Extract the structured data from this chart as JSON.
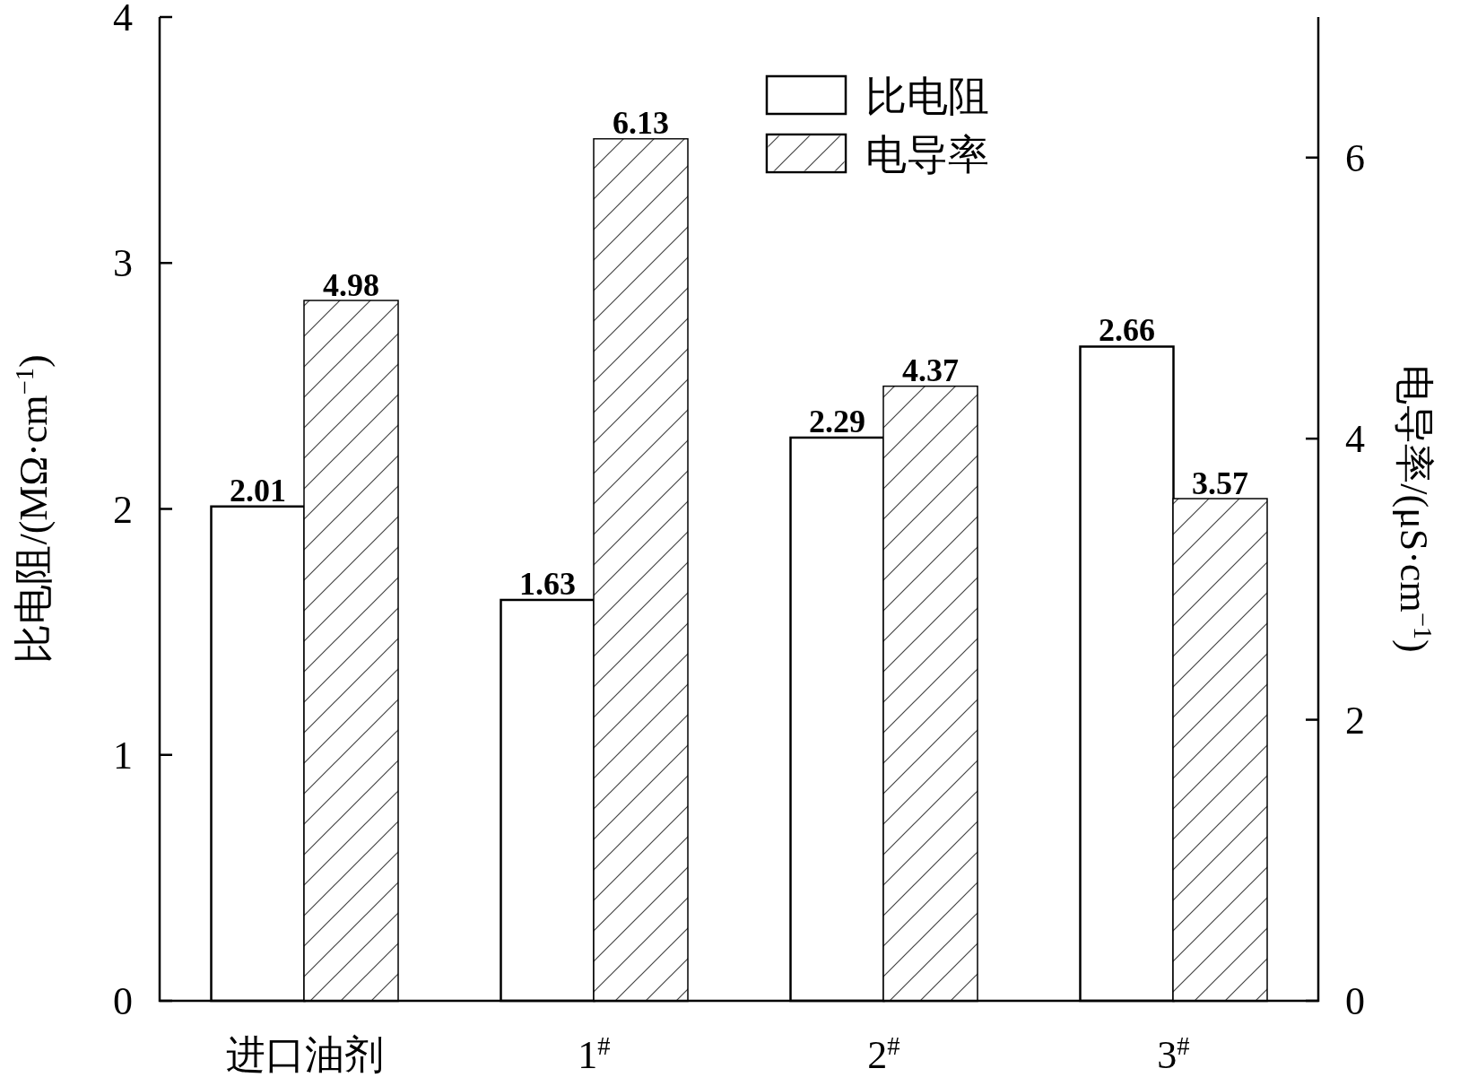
{
  "chart_data": {
    "type": "bar",
    "categories": [
      "进口油剂",
      "1$^{#}$",
      "2$^{#}$",
      "3$^{#}$"
    ],
    "series": [
      {
        "name": "比电阻",
        "color": "#ffffff",
        "values": [
          2.01,
          1.63,
          2.29,
          2.66
        ]
      },
      {
        "name": "电导率",
        "color": "#ffffff",
        "values": [
          4.98,
          6.13,
          4.37,
          3.57
        ],
        "axis": "y2"
      }
    ],
    "ylabel": "比电阻/(MΩ·cm$^{−1}$)",
    "y2label": "电导率/(μS·cm$^{−1}$)",
    "ylim": [
      0,
      4
    ],
    "yticks": [
      0,
      1,
      2,
      3,
      4
    ],
    "y2lim": [
      0,
      7
    ],
    "y2ticks": [
      0,
      2,
      4,
      6
    ],
    "data_labels": true,
    "legend": "top",
    "grid": false
  }
}
